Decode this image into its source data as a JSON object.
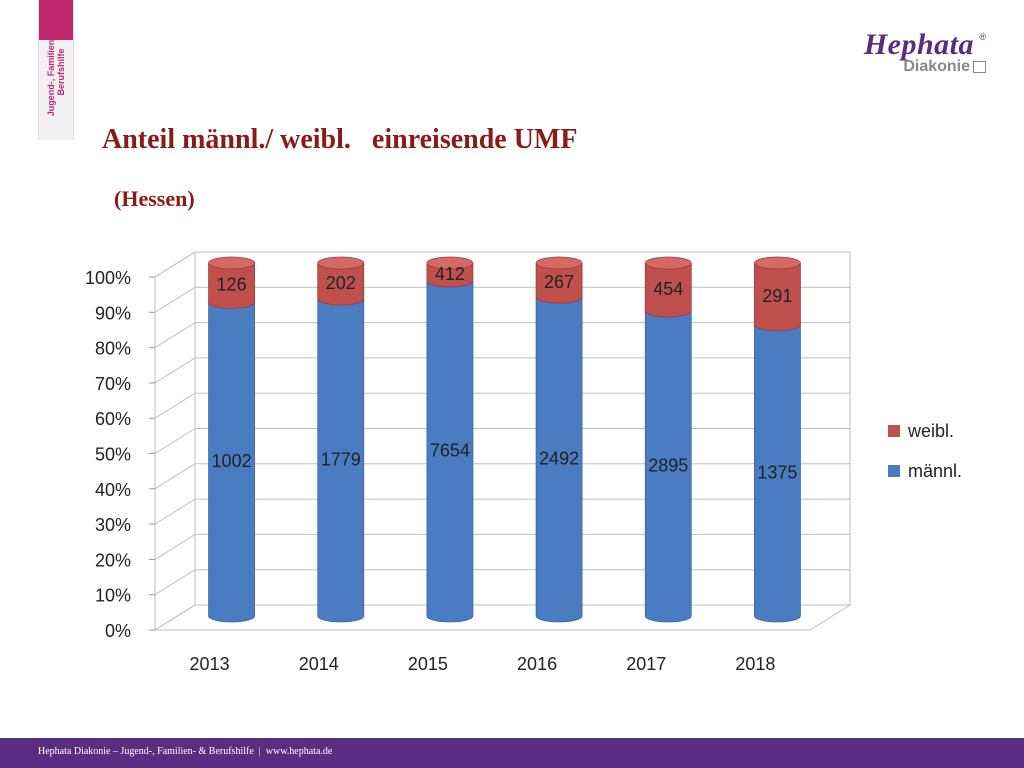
{
  "side_tab": {
    "text": "Jugend-, Familien- & Berufshilfe"
  },
  "logo": {
    "name": "Hephata",
    "reg": "®",
    "sub": "Diakonie"
  },
  "header": {
    "title": "Anteil männl./ weibl.   einreisende UMF",
    "subtitle": "(Hessen)"
  },
  "footer": {
    "text": "Hephata Diakonie – Jugend-, Familien- & Berufshilfe  |  www.hephata.de"
  },
  "colors": {
    "male": "#4a7cc2",
    "female": "#c0504d",
    "accent": "#5b2d82",
    "title": "#8b1a1a"
  },
  "chart_data": {
    "type": "bar",
    "stacked": "percent",
    "categories": [
      "2013",
      "2014",
      "2015",
      "2016",
      "2017",
      "2018"
    ],
    "series": [
      {
        "name": "männl.",
        "values": [
          1002,
          1779,
          7654,
          2492,
          2895,
          1375
        ],
        "color": "#4a7cc2"
      },
      {
        "name": "weibl.",
        "values": [
          126,
          202,
          412,
          267,
          454,
          291
        ],
        "color": "#c0504d"
      }
    ],
    "y_ticks": [
      "0%",
      "10%",
      "20%",
      "30%",
      "40%",
      "50%",
      "60%",
      "70%",
      "80%",
      "90%",
      "100%"
    ],
    "ylim": [
      0,
      100
    ],
    "grid": true,
    "legend": "right"
  }
}
